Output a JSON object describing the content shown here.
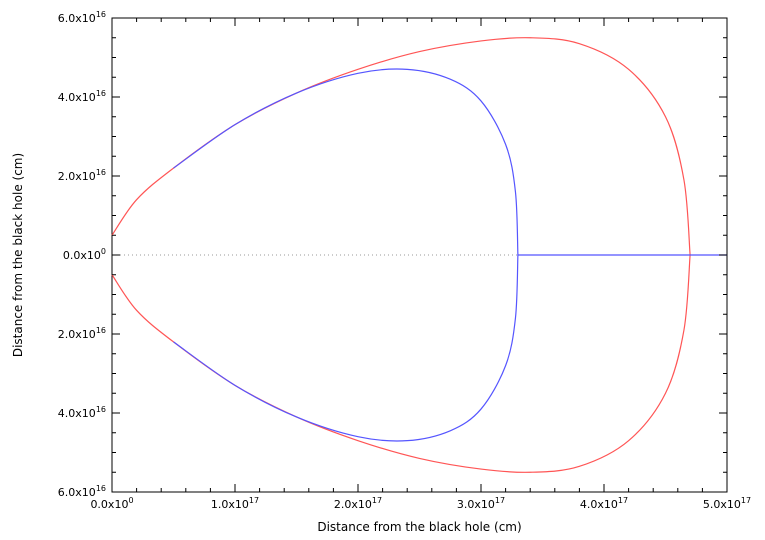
{
  "chart_data": {
    "type": "line",
    "title": "",
    "xlabel": "Distance from the black hole (cm)",
    "ylabel": "Distance from the black hole (cm)",
    "xlim": [
      0,
      5e+17
    ],
    "ylim": [
      -6e+16,
      6e+16
    ],
    "grid": false,
    "legend": "none",
    "x_ticks": [
      {
        "value": 0,
        "mantissa": "0.0x10",
        "exp": "0"
      },
      {
        "value": 1e+17,
        "mantissa": "1.0x10",
        "exp": "17"
      },
      {
        "value": 2e+17,
        "mantissa": "2.0x10",
        "exp": "17"
      },
      {
        "value": 3e+17,
        "mantissa": "3.0x10",
        "exp": "17"
      },
      {
        "value": 4e+17,
        "mantissa": "4.0x10",
        "exp": "17"
      },
      {
        "value": 5e+17,
        "mantissa": "5.0x10",
        "exp": "17"
      }
    ],
    "y_ticks": [
      {
        "value": 6e+16,
        "mantissa": "6.0x10",
        "exp": "16"
      },
      {
        "value": 4e+16,
        "mantissa": "4.0x10",
        "exp": "16"
      },
      {
        "value": 2e+16,
        "mantissa": "2.0x10",
        "exp": "16"
      },
      {
        "value": 0,
        "mantissa": "0.0x10",
        "exp": "0"
      },
      {
        "value": -2e+16,
        "mantissa": "2.0x10",
        "exp": "16"
      },
      {
        "value": -4e+16,
        "mantissa": "4.0x10",
        "exp": "16"
      },
      {
        "value": -6e+16,
        "mantissa": "6.0x10",
        "exp": "16"
      }
    ],
    "zero_line": {
      "y": 0,
      "style": "dotted",
      "color": "#999999"
    },
    "series": [
      {
        "color": "#ff5555",
        "x": [
          0,
          2e+16,
          5e+16,
          1e+17,
          1.5e+17,
          2e+17,
          2.5e+17,
          3e+17,
          3.4e+17,
          3.8e+17,
          4.2e+17,
          4.5e+17,
          4.65e+17,
          4.7e+17
        ],
        "y_upper": [
          5000000000000000.0,
          1.4e+16,
          2.2e+16,
          3.3e+16,
          4.1e+16,
          4.7e+16,
          5.15e+16,
          5.42e+16,
          5.5e+16,
          5.35e+16,
          4.7e+16,
          3.5e+16,
          1.9e+16,
          0
        ]
      },
      {
        "color": "#5555ff",
        "x": [
          5e+16,
          1e+17,
          1.5e+17,
          2e+17,
          2.4e+17,
          2.75e+17,
          3e+17,
          3.2e+17,
          3.28e+17,
          3.3e+17
        ],
        "y_upper": [
          2.2e+16,
          3.3e+16,
          4.1e+16,
          4.6e+16,
          4.7e+16,
          4.45e+16,
          3.9e+16,
          2.8e+16,
          1.6e+16,
          0
        ],
        "tail": {
          "x": [
            3.3e+17,
            5e+17
          ],
          "y": [
            0,
            0
          ]
        }
      }
    ]
  }
}
